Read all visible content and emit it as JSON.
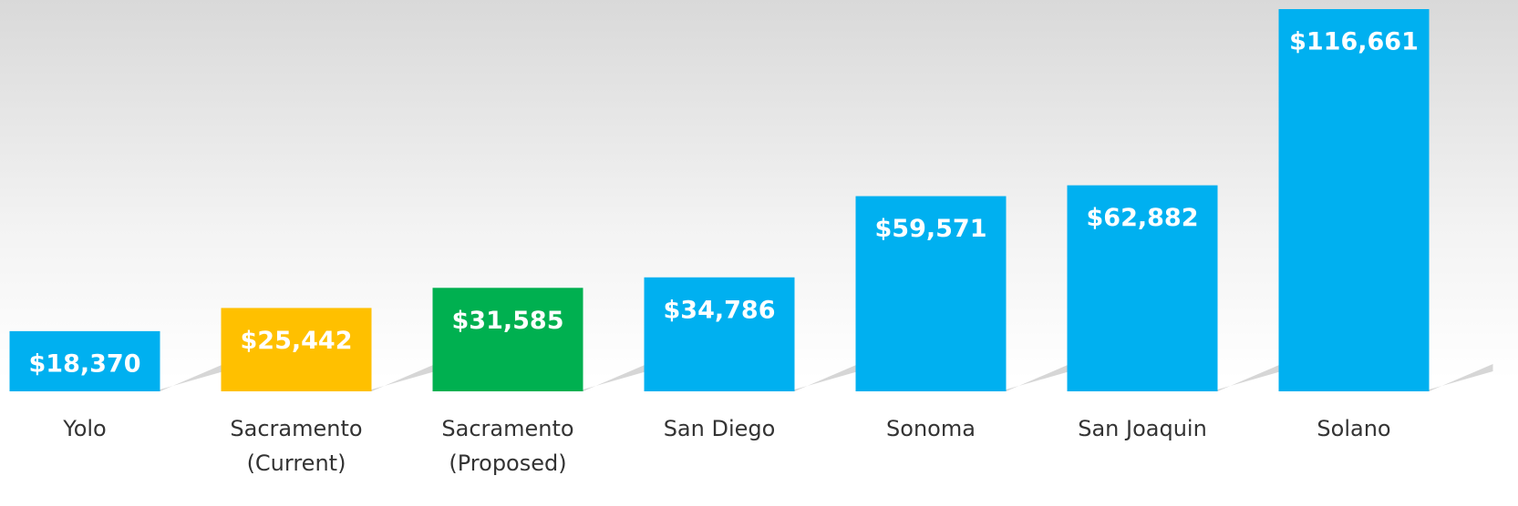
{
  "chart_data": {
    "type": "bar",
    "categories": [
      "Yolo",
      "Sacramento (Current)",
      "Sacramento (Proposed)",
      "San Diego",
      "Sonoma",
      "San Joaquin",
      "Solano"
    ],
    "values": [
      18370,
      25442,
      31585,
      34786,
      59571,
      62882,
      116661
    ],
    "value_labels": [
      "$18,370",
      "$25,442",
      "$31,585",
      "$34,786",
      "$59,571",
      "$62,882",
      "$116,661"
    ],
    "colors": [
      "#00b0f0",
      "#ffc000",
      "#00b050",
      "#00b0f0",
      "#00b0f0",
      "#00b0f0",
      "#00b0f0"
    ]
  }
}
